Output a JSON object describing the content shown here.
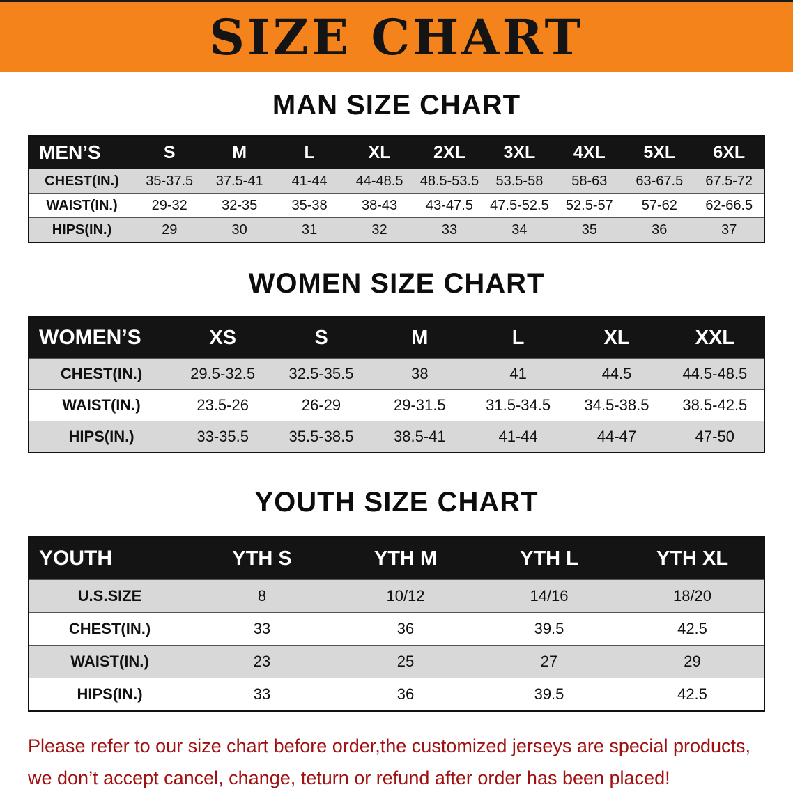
{
  "banner": {
    "title": "SIZE CHART"
  },
  "colors": {
    "banner_bg": "#F5831C",
    "table_header_bg": "#141414",
    "row_alt_gray": "#D8D8D8",
    "footer_red": "#A01010"
  },
  "chart_data": [
    {
      "type": "table",
      "title": "MAN SIZE CHART",
      "columns": [
        "MEN’S",
        "S",
        "M",
        "L",
        "XL",
        "2XL",
        "3XL",
        "4XL",
        "5XL",
        "6XL"
      ],
      "rows": [
        [
          "CHEST(IN.)",
          "35-37.5",
          "37.5-41",
          "41-44",
          "44-48.5",
          "48.5-53.5",
          "53.5-58",
          "58-63",
          "63-67.5",
          "67.5-72"
        ],
        [
          "WAIST(IN.)",
          "29-32",
          "32-35",
          "35-38",
          "38-43",
          "43-47.5",
          "47.5-52.5",
          "52.5-57",
          "57-62",
          "62-66.5"
        ],
        [
          "HIPS(IN.)",
          "29",
          "30",
          "31",
          "32",
          "33",
          "34",
          "35",
          "36",
          "37"
        ]
      ]
    },
    {
      "type": "table",
      "title": "WOMEN SIZE CHART",
      "columns": [
        "WOMEN’S",
        "XS",
        "S",
        "M",
        "L",
        "XL",
        "XXL"
      ],
      "rows": [
        [
          "CHEST(IN.)",
          "29.5-32.5",
          "32.5-35.5",
          "38",
          "41",
          "44.5",
          "44.5-48.5"
        ],
        [
          "WAIST(IN.)",
          "23.5-26",
          "26-29",
          "29-31.5",
          "31.5-34.5",
          "34.5-38.5",
          "38.5-42.5"
        ],
        [
          "HIPS(IN.)",
          "33-35.5",
          "35.5-38.5",
          "38.5-41",
          "41-44",
          "44-47",
          "47-50"
        ]
      ]
    },
    {
      "type": "table",
      "title": "YOUTH SIZE CHART",
      "columns": [
        "YOUTH",
        "YTH S",
        "YTH M",
        "YTH L",
        "YTH XL"
      ],
      "rows": [
        [
          "U.S.SIZE",
          "8",
          "10/12",
          "14/16",
          "18/20"
        ],
        [
          "CHEST(IN.)",
          "33",
          "36",
          "39.5",
          "42.5"
        ],
        [
          "WAIST(IN.)",
          "23",
          "25",
          "27",
          "29"
        ],
        [
          "HIPS(IN.)",
          "33",
          "36",
          "39.5",
          "42.5"
        ]
      ]
    }
  ],
  "footer": {
    "line1": "Please refer to our size chart before order,the customized jerseys are special products,",
    "line2": "we don’t accept cancel, change, teturn or refund after order has been placed!"
  }
}
